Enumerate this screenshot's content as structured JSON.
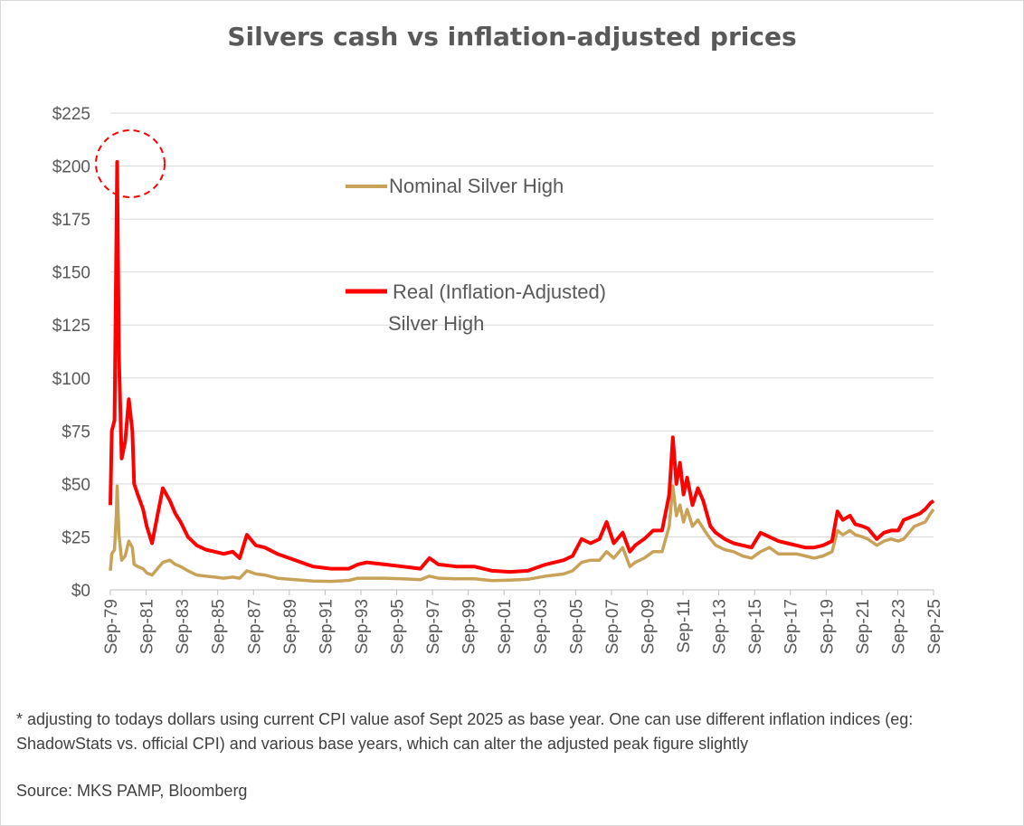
{
  "chart_data": {
    "type": "line",
    "title": "Silvers cash vs inflation-adjusted prices",
    "xlabel": "",
    "ylabel": "",
    "ylim": [
      0,
      225
    ],
    "y_ticks": [
      "$0",
      "$25",
      "$50",
      "$75",
      "$100",
      "$125",
      "$150",
      "$175",
      "$200",
      "$225"
    ],
    "y_tick_values": [
      0,
      25,
      50,
      75,
      100,
      125,
      150,
      175,
      200,
      225
    ],
    "x_ticks": [
      "Sep-79",
      "Sep-81",
      "Sep-83",
      "Sep-85",
      "Sep-87",
      "Sep-89",
      "Sep-91",
      "Sep-93",
      "Sep-95",
      "Sep-97",
      "Sep-99",
      "Sep-01",
      "Sep-03",
      "Sep-05",
      "Sep-07",
      "Sep-09",
      "Sep-11",
      "Sep-13",
      "Sep-15",
      "Sep-17",
      "Sep-19",
      "Sep-21",
      "Sep-23",
      "Sep-25"
    ],
    "xlim": [
      1979.67,
      2025.67
    ],
    "grid": true,
    "legend_placement": "top-center",
    "annotation": "circle around 1980 peak",
    "series": [
      {
        "name": "Nominal Silver High",
        "color": "#c9a25a",
        "x": [
          1979.67,
          1979.75,
          1979.9,
          1980.0,
          1980.05,
          1980.15,
          1980.3,
          1980.5,
          1980.7,
          1980.9,
          1981.0,
          1981.2,
          1981.5,
          1981.7,
          1982.0,
          1982.3,
          1982.6,
          1983.0,
          1983.3,
          1983.6,
          1984.0,
          1984.5,
          1985.0,
          1985.5,
          1986.0,
          1986.5,
          1986.9,
          1987.3,
          1987.8,
          1988.3,
          1989.0,
          1990.0,
          1991.0,
          1992.0,
          1993.0,
          1993.5,
          1994.0,
          1995.0,
          1996.0,
          1997.0,
          1997.5,
          1998.0,
          1999.0,
          2000.0,
          2001.0,
          2002.0,
          2003.0,
          2004.0,
          2004.5,
          2005.0,
          2005.5,
          2006.0,
          2006.5,
          2007.0,
          2007.4,
          2007.8,
          2008.3,
          2008.7,
          2009.0,
          2009.5,
          2010.0,
          2010.5,
          2010.9,
          2011.1,
          2011.3,
          2011.5,
          2011.7,
          2011.9,
          2012.2,
          2012.5,
          2012.8,
          2013.2,
          2013.5,
          2014.0,
          2014.5,
          2015.0,
          2015.5,
          2016.0,
          2016.5,
          2017.0,
          2017.5,
          2018.0,
          2018.5,
          2019.0,
          2019.5,
          2020.0,
          2020.3,
          2020.6,
          2021.0,
          2021.3,
          2021.7,
          2022.0,
          2022.5,
          2022.9,
          2023.3,
          2023.7,
          2024.0,
          2024.3,
          2024.6,
          2024.9,
          2025.2,
          2025.5,
          2025.67
        ],
        "values": [
          9,
          17,
          19,
          35,
          49,
          26,
          14,
          16,
          23,
          20,
          12,
          11,
          10,
          8,
          7,
          10,
          13,
          14,
          12,
          11,
          9,
          7,
          6.5,
          6,
          5.5,
          6,
          5.5,
          9,
          7.5,
          7,
          5.5,
          4.8,
          4.2,
          4,
          4.5,
          5.5,
          5.5,
          5.5,
          5.2,
          4.8,
          6.5,
          5.5,
          5.2,
          5.2,
          4.4,
          4.6,
          5,
          6.5,
          7,
          7.5,
          9,
          13,
          14,
          14,
          18,
          15,
          20,
          11,
          13,
          15,
          18,
          18,
          30,
          49,
          35,
          40,
          32,
          38,
          30,
          33,
          29,
          24,
          21,
          19,
          18,
          16,
          15,
          18,
          20,
          17,
          17,
          17,
          16,
          15,
          16,
          18,
          28,
          26,
          28,
          26,
          25,
          24,
          21,
          23,
          24,
          23,
          24,
          27,
          30,
          31,
          32,
          36,
          38
        ]
      },
      {
        "name": "Real (Inflation-Adjusted) Silver High",
        "color": "#ff0000",
        "x": [
          1979.67,
          1979.75,
          1979.9,
          1980.0,
          1980.05,
          1980.15,
          1980.3,
          1980.5,
          1980.7,
          1980.9,
          1981.0,
          1981.2,
          1981.5,
          1981.7,
          1982.0,
          1982.3,
          1982.6,
          1983.0,
          1983.3,
          1983.6,
          1984.0,
          1984.5,
          1985.0,
          1985.5,
          1986.0,
          1986.5,
          1986.9,
          1987.3,
          1987.8,
          1988.3,
          1989.0,
          1990.0,
          1991.0,
          1992.0,
          1993.0,
          1993.5,
          1994.0,
          1995.0,
          1996.0,
          1997.0,
          1997.5,
          1998.0,
          1999.0,
          2000.0,
          2001.0,
          2002.0,
          2003.0,
          2004.0,
          2004.5,
          2005.0,
          2005.5,
          2006.0,
          2006.5,
          2007.0,
          2007.4,
          2007.8,
          2008.3,
          2008.7,
          2009.0,
          2009.5,
          2010.0,
          2010.5,
          2010.9,
          2011.1,
          2011.3,
          2011.5,
          2011.7,
          2011.9,
          2012.2,
          2012.5,
          2012.8,
          2013.2,
          2013.5,
          2014.0,
          2014.5,
          2015.0,
          2015.5,
          2016.0,
          2016.5,
          2017.0,
          2017.5,
          2018.0,
          2018.5,
          2019.0,
          2019.5,
          2020.0,
          2020.3,
          2020.6,
          2021.0,
          2021.3,
          2021.7,
          2022.0,
          2022.5,
          2022.9,
          2023.3,
          2023.7,
          2024.0,
          2024.3,
          2024.6,
          2024.9,
          2025.2,
          2025.5,
          2025.67
        ],
        "values": [
          40,
          75,
          80,
          160,
          202,
          110,
          62,
          70,
          90,
          75,
          50,
          45,
          38,
          30,
          22,
          35,
          48,
          42,
          36,
          32,
          25,
          21,
          19,
          18,
          17,
          18,
          15,
          26,
          21,
          20,
          17,
          14,
          11,
          10,
          10,
          12,
          13,
          12,
          11,
          10,
          15,
          12,
          11,
          11,
          9,
          8.5,
          9,
          12,
          13,
          14,
          16,
          24,
          22,
          24,
          32,
          22,
          27,
          18,
          21,
          24,
          28,
          28,
          45,
          72,
          50,
          60,
          45,
          53,
          40,
          48,
          42,
          30,
          27,
          24,
          22,
          21,
          20,
          27,
          25,
          23,
          22,
          21,
          20,
          20,
          21,
          23,
          37,
          33,
          35,
          31,
          30,
          29,
          24,
          27,
          28,
          28,
          33,
          34,
          35,
          36,
          38,
          41,
          42
        ]
      }
    ]
  },
  "legend": {
    "nominal_label": "Nominal Silver High",
    "real_label_line1": "Real (Inflation-Adjusted)",
    "real_label_line2": "Silver High"
  },
  "footnote": "* adjusting to todays dollars using current CPI value asof Sept 2025 as base year. One can use different inflation indices (eg: ShadowStats vs. official CPI) and various base years, which can  alter the adjusted peak figure slightly",
  "source": "Source: MKS PAMP,  Bloomberg"
}
